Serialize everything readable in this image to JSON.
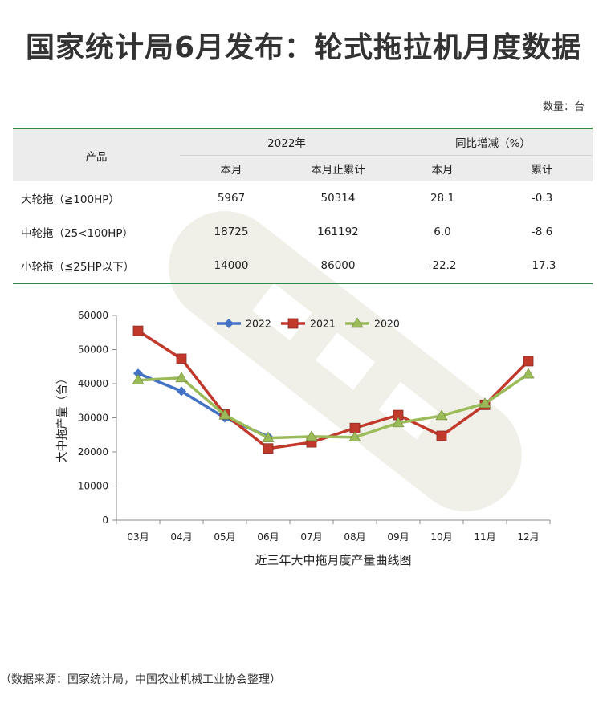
{
  "title": "国家统计局6月发布：轮式拖拉机月度数据",
  "unit": "数量：台",
  "table": {
    "product_header": "产品",
    "group_2022": "2022年",
    "group_yoy": "同比增减（%）",
    "sub_headers": [
      "本月",
      "本月止累计",
      "本月",
      "累计"
    ],
    "rows": [
      {
        "name": "大轮拖（≧100HP）",
        "month": "5967",
        "cumulative": "50314",
        "yoy_month": "28.1",
        "yoy_cum": "-0.3"
      },
      {
        "name": "中轮拖（25<100HP）",
        "month": "18725",
        "cumulative": "161192",
        "yoy_month": "6.0",
        "yoy_cum": "-8.6"
      },
      {
        "name": "小轮拖（≦25HP以下）",
        "month": "14000",
        "cumulative": "86000",
        "yoy_month": "-22.2",
        "yoy_cum": "-17.3"
      }
    ]
  },
  "chart_data": {
    "type": "line",
    "title": "近三年大中拖月度产量曲线图",
    "xlabel": "近三年大中拖月度产量曲线图",
    "ylabel": "大中拖产量（台）",
    "categories": [
      "03月",
      "04月",
      "05月",
      "06月",
      "07月",
      "08月",
      "09月",
      "10月",
      "11月",
      "12月"
    ],
    "ylim": [
      0,
      60000
    ],
    "yticks": [
      "0",
      "10000",
      "20000",
      "30000",
      "40000",
      "50000",
      "60000"
    ],
    "legend_position": "top",
    "series": [
      {
        "name": "2022",
        "color": "#4472c4",
        "marker": "diamond",
        "values": [
          43000,
          37800,
          30000,
          24500,
          null,
          null,
          null,
          null,
          null,
          null
        ]
      },
      {
        "name": "2021",
        "color": "#c0392b",
        "marker": "square",
        "values": [
          55500,
          47300,
          31000,
          21000,
          22800,
          27000,
          30800,
          24700,
          33800,
          46600
        ]
      },
      {
        "name": "2020",
        "color": "#9bbb59",
        "marker": "triangle",
        "values": [
          41000,
          41700,
          30800,
          24100,
          24500,
          24300,
          28500,
          30600,
          34200,
          42800
        ]
      }
    ]
  },
  "source": "（数据来源：国家统计局，中国农业机械工业协会整理）"
}
